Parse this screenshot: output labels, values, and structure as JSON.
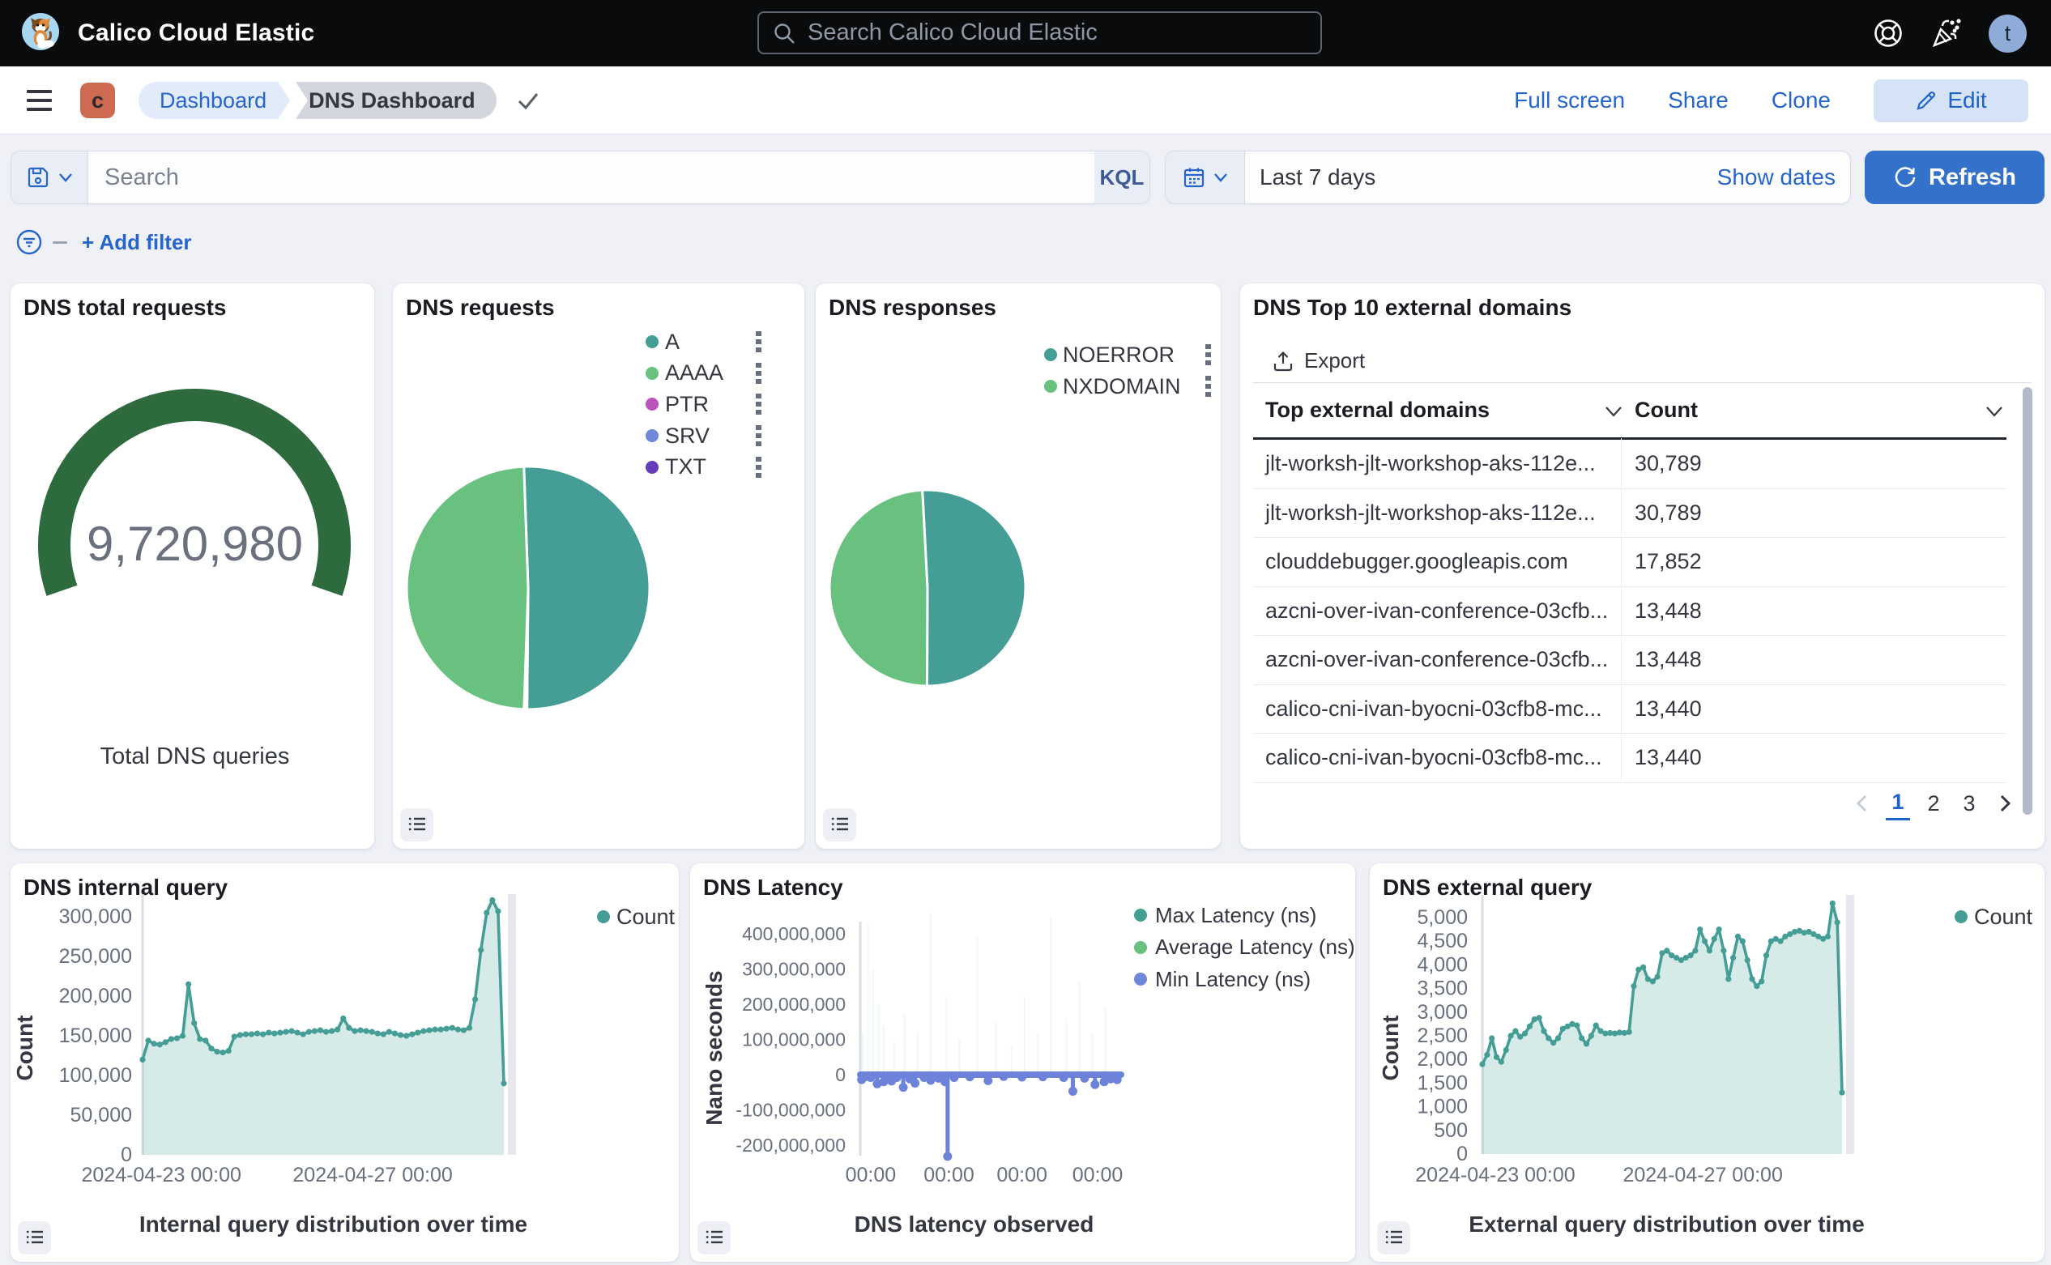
{
  "topbar": {
    "title": "Calico Cloud Elastic",
    "search_placeholder": "Search Calico Cloud Elastic",
    "avatar_initial": "t"
  },
  "navbar": {
    "badge": "c",
    "breadcrumb_parent": "Dashboard",
    "breadcrumb_current": "DNS Dashboard",
    "action_fullscreen": "Full screen",
    "action_share": "Share",
    "action_clone": "Clone",
    "edit_label": "Edit"
  },
  "querybar": {
    "search_placeholder": "Search",
    "kql_label": "KQL",
    "time_range": "Last 7 days",
    "show_dates_label": "Show dates",
    "refresh_label": "Refresh",
    "add_filter_label": "+ Add filter"
  },
  "colors": {
    "accent_blue": "#2565CC",
    "teal": "#459E96",
    "green": "#68C17F",
    "magenta": "#BC52BC",
    "periwinkle": "#6F87D8",
    "purple": "#663DB8",
    "gauge_green": "#2D6B3E",
    "axis_gray": "#69707D"
  },
  "panels": {
    "total_requests": {
      "title": "DNS total requests",
      "value": "9,720,980",
      "caption": "Total DNS queries",
      "chart_data": {
        "type": "gauge",
        "value": 9720980,
        "color": "#2D6B3E"
      }
    },
    "requests_pie": {
      "title": "DNS requests",
      "chart_data": {
        "type": "pie",
        "slices": [
          {
            "label": "A",
            "value": 50.7,
            "color": "#459E96"
          },
          {
            "label": "PTR",
            "value": 0.2,
            "color": "#BC52BC"
          },
          {
            "label": "SRV",
            "value": 0.1,
            "color": "#6F87D8"
          },
          {
            "label": "TXT",
            "value": 0.1,
            "color": "#663DB8"
          },
          {
            "label": "AAAA",
            "value": 48.9,
            "color": "#68C17F"
          }
        ],
        "legend": [
          {
            "label": "A",
            "color": "#459E96"
          },
          {
            "label": "AAAA",
            "color": "#68C17F"
          },
          {
            "label": "PTR",
            "color": "#BC52BC"
          },
          {
            "label": "SRV",
            "color": "#6F87D8"
          },
          {
            "label": "TXT",
            "color": "#663DB8"
          }
        ]
      }
    },
    "responses_pie": {
      "title": "DNS responses",
      "chart_data": {
        "type": "pie",
        "slices": [
          {
            "label": "NOERROR",
            "value": 50.9,
            "color": "#459E96"
          },
          {
            "label": "NXDOMAIN",
            "value": 49.1,
            "color": "#68C17F"
          }
        ],
        "legend": [
          {
            "label": "NOERROR",
            "color": "#459E96"
          },
          {
            "label": "NXDOMAIN",
            "color": "#68C17F"
          }
        ]
      }
    },
    "top_domains": {
      "title": "DNS Top 10 external domains",
      "export_label": "Export",
      "col_domain": "Top external domains",
      "col_count": "Count",
      "rows": [
        {
          "domain": "jlt-worksh-jlt-workshop-aks-112e...",
          "count": "30,789"
        },
        {
          "domain": "jlt-worksh-jlt-workshop-aks-112e...",
          "count": "30,789"
        },
        {
          "domain": "clouddebugger.googleapis.com",
          "count": "17,852"
        },
        {
          "domain": "azcni-over-ivan-conference-03cfb...",
          "count": "13,448"
        },
        {
          "domain": "azcni-over-ivan-conference-03cfb...",
          "count": "13,448"
        },
        {
          "domain": "calico-cni-ivan-byocni-03cfb8-mc...",
          "count": "13,440"
        },
        {
          "domain": "calico-cni-ivan-byocni-03cfb8-mc...",
          "count": "13,440"
        }
      ],
      "pages": [
        "1",
        "2",
        "3"
      ],
      "active_page": "1"
    },
    "internal_query": {
      "title": "DNS internal query",
      "xlabel": "Internal query distribution over time",
      "ylabel": "Count",
      "legend": [
        {
          "label": "Count",
          "color": "#459E96"
        }
      ],
      "chart_data": {
        "type": "area",
        "line_color": "#459E96",
        "ylim": [
          0,
          300000
        ],
        "yticks": [
          {
            "label": "300,000",
            "value": 300000
          },
          {
            "label": "250,000",
            "value": 250000
          },
          {
            "label": "200,000",
            "value": 200000
          },
          {
            "label": "150,000",
            "value": 150000
          },
          {
            "label": "100,000",
            "value": 100000
          },
          {
            "label": "50,000",
            "value": 50000
          },
          {
            "label": "0",
            "value": 0
          }
        ],
        "xticks": [
          {
            "label": "2024-04-23 00:00",
            "f": 0.052
          },
          {
            "label": "2024-04-27 00:00",
            "f": 0.637
          }
        ],
        "values": [
          120000,
          144000,
          140000,
          139000,
          142000,
          146000,
          147000,
          150000,
          215000,
          166000,
          146000,
          144000,
          134000,
          130000,
          129000,
          131000,
          149000,
          151000,
          152000,
          152000,
          153000,
          152000,
          154000,
          153000,
          154000,
          155000,
          156000,
          154000,
          152000,
          155000,
          156000,
          157000,
          155000,
          156000,
          158000,
          172000,
          160000,
          156000,
          157000,
          156000,
          155000,
          153000,
          152000,
          155000,
          153000,
          151000,
          150000,
          152000,
          154000,
          156000,
          157000,
          158000,
          158000,
          159000,
          160000,
          158000,
          157000,
          160000,
          196000,
          258000,
          305000,
          321000,
          307000,
          90000
        ]
      }
    },
    "latency": {
      "title": "DNS Latency",
      "xlabel": "DNS latency observed",
      "ylabel": "Nano seconds",
      "legend": [
        {
          "label": "Max Latency (ns)",
          "color": "#459E96"
        },
        {
          "label": "Average Latency (ns)",
          "color": "#68C17F"
        },
        {
          "label": "Min Latency (ns)",
          "color": "#6F87D8"
        }
      ],
      "chart_data": {
        "type": "latency",
        "line_color": "#6D83D9",
        "yticks": [
          {
            "label": "400,000,000",
            "value": 400
          },
          {
            "label": "300,000,000",
            "value": 300
          },
          {
            "label": "200,000,000",
            "value": 200
          },
          {
            "label": "100,000,000",
            "value": 100
          },
          {
            "label": "0",
            "value": 0
          },
          {
            "label": "-100,000,000",
            "value": -100
          },
          {
            "label": "-200,000,000",
            "value": -200
          }
        ],
        "xticks": [
          {
            "label": "00:00",
            "f": 0.04
          },
          {
            "label": "00:00",
            "f": 0.34
          },
          {
            "label": "00:00",
            "f": 0.62
          },
          {
            "label": "00:00",
            "f": 0.91
          }
        ],
        "min_dips": [
          {
            "f": 0.005,
            "v": -14
          },
          {
            "f": 0.02,
            "v": -6
          },
          {
            "f": 0.04,
            "v": -8
          },
          {
            "f": 0.065,
            "v": -26
          },
          {
            "f": 0.09,
            "v": -20
          },
          {
            "f": 0.105,
            "v": -10
          },
          {
            "f": 0.12,
            "v": -18
          },
          {
            "f": 0.14,
            "v": -8
          },
          {
            "f": 0.165,
            "v": -36
          },
          {
            "f": 0.19,
            "v": -12
          },
          {
            "f": 0.21,
            "v": -24
          },
          {
            "f": 0.245,
            "v": -8
          },
          {
            "f": 0.27,
            "v": -16
          },
          {
            "f": 0.3,
            "v": -10
          },
          {
            "f": 0.325,
            "v": -20
          },
          {
            "f": 0.335,
            "v": -232
          },
          {
            "f": 0.36,
            "v": -8
          },
          {
            "f": 0.42,
            "v": -6
          },
          {
            "f": 0.49,
            "v": -17
          },
          {
            "f": 0.55,
            "v": -5
          },
          {
            "f": 0.62,
            "v": -7
          },
          {
            "f": 0.7,
            "v": -6
          },
          {
            "f": 0.78,
            "v": -8
          },
          {
            "f": 0.815,
            "v": -47
          },
          {
            "f": 0.86,
            "v": -10
          },
          {
            "f": 0.9,
            "v": -28
          },
          {
            "f": 0.935,
            "v": -20
          },
          {
            "f": 0.96,
            "v": -12
          },
          {
            "f": 0.985,
            "v": -14
          }
        ],
        "max_spikes": [
          {
            "f": 0.01,
            "v": 120
          },
          {
            "f": 0.03,
            "v": 430
          },
          {
            "f": 0.05,
            "v": 300
          },
          {
            "f": 0.07,
            "v": 200
          },
          {
            "f": 0.09,
            "v": 140
          },
          {
            "f": 0.13,
            "v": 90
          },
          {
            "f": 0.17,
            "v": 170
          },
          {
            "f": 0.22,
            "v": 120
          },
          {
            "f": 0.27,
            "v": 460
          },
          {
            "f": 0.33,
            "v": 220
          },
          {
            "f": 0.38,
            "v": 100
          },
          {
            "f": 0.45,
            "v": 390
          },
          {
            "f": 0.52,
            "v": 150
          },
          {
            "f": 0.58,
            "v": 80
          },
          {
            "f": 0.63,
            "v": 220
          },
          {
            "f": 0.68,
            "v": 120
          },
          {
            "f": 0.73,
            "v": 450
          },
          {
            "f": 0.79,
            "v": 160
          },
          {
            "f": 0.84,
            "v": 260
          },
          {
            "f": 0.89,
            "v": 120
          },
          {
            "f": 0.94,
            "v": 190
          }
        ]
      }
    },
    "external_query": {
      "title": "DNS external query",
      "xlabel": "External query distribution over time",
      "ylabel": "Count",
      "legend": [
        {
          "label": "Count",
          "color": "#459E96"
        }
      ],
      "chart_data": {
        "type": "area",
        "line_color": "#459E96",
        "ylim": [
          0,
          5000
        ],
        "yticks": [
          {
            "label": "5,000",
            "value": 5000
          },
          {
            "label": "4,500",
            "value": 4500
          },
          {
            "label": "4,000",
            "value": 4000
          },
          {
            "label": "3,500",
            "value": 3500
          },
          {
            "label": "3,000",
            "value": 3000
          },
          {
            "label": "2,500",
            "value": 2500
          },
          {
            "label": "2,000",
            "value": 2000
          },
          {
            "label": "1,500",
            "value": 1500
          },
          {
            "label": "1,000",
            "value": 1000
          },
          {
            "label": "500",
            "value": 500
          },
          {
            "label": "0",
            "value": 0
          }
        ],
        "xticks": [
          {
            "label": "2024-04-23 00:00",
            "f": 0.036
          },
          {
            "label": "2024-04-27 00:00",
            "f": 0.613
          }
        ],
        "values": [
          1900,
          2100,
          2450,
          2050,
          1950,
          2200,
          2500,
          2600,
          2480,
          2550,
          2700,
          2850,
          2880,
          2600,
          2450,
          2350,
          2450,
          2650,
          2700,
          2750,
          2720,
          2450,
          2330,
          2500,
          2720,
          2600,
          2550,
          2560,
          2550,
          2570,
          2560,
          2580,
          3550,
          3900,
          3950,
          3700,
          3650,
          3750,
          4250,
          4300,
          4200,
          4150,
          4100,
          4150,
          4200,
          4300,
          4750,
          4500,
          4300,
          4550,
          4750,
          4300,
          3700,
          4150,
          4600,
          4500,
          4100,
          3700,
          3550,
          3650,
          4200,
          4500,
          4550,
          4500,
          4600,
          4650,
          4700,
          4720,
          4680,
          4700,
          4650,
          4600,
          4550,
          4600,
          5300,
          4900,
          1300
        ]
      }
    }
  }
}
